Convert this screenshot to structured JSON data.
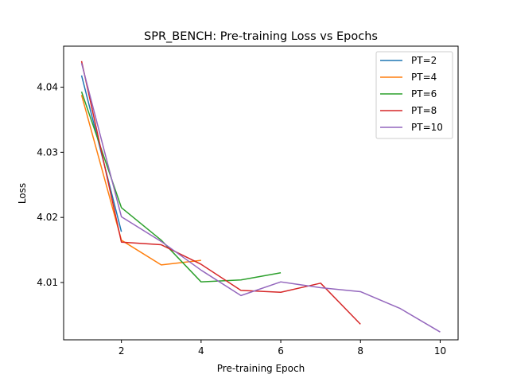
{
  "chart_data": {
    "type": "line",
    "title": "SPR_BENCH: Pre-training Loss vs Epochs",
    "xlabel": "Pre-training Epoch",
    "ylabel": "Loss",
    "xlim": [
      0.55,
      10.45
    ],
    "ylim": [
      4.0012,
      4.0463
    ],
    "xticks": [
      2,
      4,
      6,
      8,
      10
    ],
    "yticks": [
      4.01,
      4.02,
      4.03,
      4.04
    ],
    "xtick_labels": [
      "2",
      "4",
      "6",
      "8",
      "10"
    ],
    "ytick_labels": [
      "4.01",
      "4.02",
      "4.03",
      "4.04"
    ],
    "grid": false,
    "legend": "upper-right",
    "series": [
      {
        "name": "PT=2",
        "color": "#1f77b4",
        "x": [
          1,
          2
        ],
        "y": [
          4.0418,
          4.0178
        ]
      },
      {
        "name": "PT=4",
        "color": "#ff7f0e",
        "x": [
          1,
          2,
          3,
          4
        ],
        "y": [
          4.0388,
          4.0165,
          4.0127,
          4.0134
        ]
      },
      {
        "name": "PT=6",
        "color": "#2ca02c",
        "x": [
          1,
          2,
          3,
          4,
          5,
          6
        ],
        "y": [
          4.0393,
          4.0215,
          4.0165,
          4.0101,
          4.0104,
          4.0115
        ]
      },
      {
        "name": "PT=8",
        "color": "#d62728",
        "x": [
          1,
          2,
          3,
          4,
          5,
          6,
          7,
          8
        ],
        "y": [
          4.044,
          4.0162,
          4.0158,
          4.0128,
          4.0088,
          4.0085,
          4.0099,
          4.0036
        ]
      },
      {
        "name": "PT=10",
        "color": "#9467bd",
        "x": [
          1,
          2,
          3,
          4,
          5,
          6,
          7,
          8,
          9,
          10
        ],
        "y": [
          4.0437,
          4.0201,
          4.0163,
          4.0119,
          4.008,
          4.0101,
          4.0092,
          4.0086,
          4.006,
          4.0024
        ]
      }
    ]
  }
}
